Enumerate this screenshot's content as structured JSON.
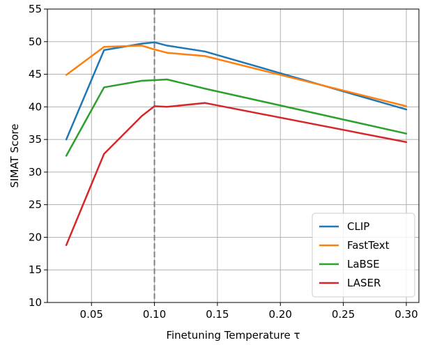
{
  "chart_data": {
    "type": "line",
    "title": "",
    "xlabel": "Finetuning Temperature τ",
    "ylabel": "SIMAT Score",
    "xlim": [
      0.015,
      0.31
    ],
    "ylim": [
      10,
      55
    ],
    "xticks": [
      0.05,
      0.1,
      0.15,
      0.2,
      0.25,
      0.3
    ],
    "xtick_labels": [
      "0.05",
      "0.10",
      "0.15",
      "0.20",
      "0.25",
      "0.30"
    ],
    "yticks": [
      10,
      15,
      20,
      25,
      30,
      35,
      40,
      45,
      50,
      55
    ],
    "ytick_labels": [
      "10",
      "15",
      "20",
      "25",
      "30",
      "35",
      "40",
      "45",
      "50",
      "55"
    ],
    "grid": true,
    "legend_position": "lower-right",
    "reference_line": {
      "x": 0.1,
      "style": "dashed",
      "color": "#808080"
    },
    "series": [
      {
        "name": "CLIP",
        "color": "#1f77b4",
        "x": [
          0.03,
          0.06,
          0.09,
          0.1,
          0.11,
          0.14,
          0.3
        ],
        "y": [
          35.0,
          48.7,
          49.7,
          49.9,
          49.4,
          48.5,
          39.6
        ]
      },
      {
        "name": "FastText",
        "color": "#ff7f0e",
        "x": [
          0.03,
          0.06,
          0.09,
          0.1,
          0.11,
          0.14,
          0.3
        ],
        "y": [
          44.9,
          49.2,
          49.4,
          48.8,
          48.3,
          47.8,
          40.1
        ]
      },
      {
        "name": "LaBSE",
        "color": "#2ca02c",
        "x": [
          0.03,
          0.06,
          0.09,
          0.1,
          0.11,
          0.14,
          0.3
        ],
        "y": [
          32.5,
          43.0,
          44.0,
          44.1,
          44.2,
          42.8,
          35.9
        ]
      },
      {
        "name": "LASER",
        "color": "#d62728",
        "x": [
          0.03,
          0.06,
          0.09,
          0.1,
          0.11,
          0.14,
          0.3
        ],
        "y": [
          18.8,
          32.8,
          38.6,
          40.1,
          40.0,
          40.6,
          34.6
        ]
      }
    ]
  }
}
